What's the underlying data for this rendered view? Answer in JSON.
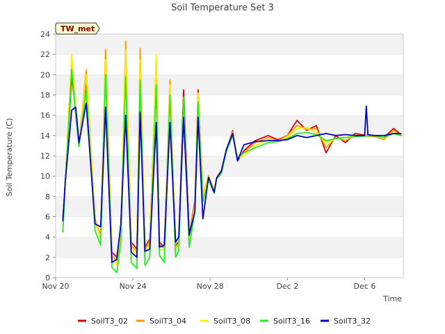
{
  "chart_data": {
    "type": "line",
    "title": "Soil Temperature Set 3",
    "xlabel": "Time",
    "ylabel": "Soil Temperature (C)",
    "badge": "TW_met",
    "ylim": [
      0,
      24
    ],
    "xlim": [
      "2022-11-20",
      "2022-12-08"
    ],
    "yticks": [
      0,
      2,
      4,
      6,
      8,
      10,
      12,
      14,
      16,
      18,
      20,
      22,
      24
    ],
    "xticks": [
      {
        "date": "2022-11-20",
        "label": "Nov 20"
      },
      {
        "date": "2022-11-24",
        "label": "Nov 24"
      },
      {
        "date": "2022-11-28",
        "label": "Nov 28"
      },
      {
        "date": "2022-12-02",
        "label": "Dec 2"
      },
      {
        "date": "2022-12-06",
        "label": "Dec 6"
      }
    ],
    "grid": "horizontal alternating bands",
    "legend_position": "bottom",
    "series": [
      {
        "name": "SoilT3_02",
        "color": "#dd0000",
        "x": [
          "2022-11-20 09:00",
          "2022-11-20 12:00",
          "2022-11-20 20:00",
          "2022-11-21 01:00",
          "2022-11-21 05:00",
          "2022-11-21 14:00",
          "2022-11-22 01:00",
          "2022-11-22 08:00",
          "2022-11-22 14:00",
          "2022-11-22 22:00",
          "2022-11-23 04:00",
          "2022-11-23 09:00",
          "2022-11-23 15:00",
          "2022-11-23 22:00",
          "2022-11-24 05:00",
          "2022-11-24 09:00",
          "2022-11-24 15:00",
          "2022-11-24 21:00",
          "2022-11-25 05:00",
          "2022-11-25 09:00",
          "2022-11-25 15:00",
          "2022-11-25 22:00",
          "2022-11-26 05:00",
          "2022-11-26 09:00",
          "2022-11-26 15:00",
          "2022-11-26 22:00",
          "2022-11-27 05:00",
          "2022-11-27 09:00",
          "2022-11-27 15:00",
          "2022-11-27 22:00",
          "2022-11-28 05:00",
          "2022-11-28 08:00",
          "2022-11-28 14:00",
          "2022-11-28 20:00",
          "2022-11-29 04:00",
          "2022-11-29 10:00",
          "2022-11-29 18:00",
          "2022-11-30 08:00",
          "2022-12-01 00:00",
          "2022-12-01 12:00",
          "2022-12-02 00:00",
          "2022-12-02 12:00",
          "2022-12-03 00:00",
          "2022-12-03 12:00",
          "2022-12-04 00:00",
          "2022-12-04 12:00",
          "2022-12-05 00:00",
          "2022-12-05 12:00",
          "2022-12-06 12:00",
          "2022-12-07 00:00",
          "2022-12-07 12:00",
          "2022-12-07 21:00"
        ],
        "y": [
          5.8,
          9.5,
          19.8,
          16.5,
          13.0,
          19.5,
          5.5,
          4.2,
          20.5,
          2.5,
          2.0,
          5.0,
          20.0,
          3.5,
          2.8,
          19.5,
          3.0,
          3.8,
          21.0,
          3.5,
          3.0,
          18.5,
          3.2,
          3.5,
          18.5,
          4.2,
          7.5,
          18.5,
          8.0,
          10.0,
          8.5,
          9.8,
          10.5,
          12.5,
          14.5,
          11.5,
          12.5,
          13.5,
          14.0,
          13.6,
          14.0,
          15.5,
          14.5,
          15.0,
          12.3,
          14.0,
          13.3,
          14.2,
          13.9,
          13.8,
          14.7,
          14.1
        ]
      },
      {
        "name": "SoilT3_04",
        "color": "#ff9900",
        "x": [
          "2022-11-20 09:00",
          "2022-11-20 12:00",
          "2022-11-20 20:00",
          "2022-11-21 01:00",
          "2022-11-21 05:00",
          "2022-11-21 14:00",
          "2022-11-22 01:00",
          "2022-11-22 08:00",
          "2022-11-22 14:00",
          "2022-11-22 22:00",
          "2022-11-23 04:00",
          "2022-11-23 09:00",
          "2022-11-23 15:00",
          "2022-11-23 22:00",
          "2022-11-24 05:00",
          "2022-11-24 09:00",
          "2022-11-24 15:00",
          "2022-11-24 21:00",
          "2022-11-25 05:00",
          "2022-11-25 09:00",
          "2022-11-25 15:00",
          "2022-11-25 22:00",
          "2022-11-26 05:00",
          "2022-11-26 09:00",
          "2022-11-26 15:00",
          "2022-11-26 22:00",
          "2022-11-27 05:00",
          "2022-11-27 09:00",
          "2022-11-27 15:00",
          "2022-11-27 22:00",
          "2022-11-28 05:00",
          "2022-11-28 08:00",
          "2022-11-28 14:00",
          "2022-11-28 20:00",
          "2022-11-29 04:00",
          "2022-11-29 10:00",
          "2022-11-29 18:00",
          "2022-11-30 08:00",
          "2022-12-01 00:00",
          "2022-12-01 12:00",
          "2022-12-02 00:00",
          "2022-12-02 12:00",
          "2022-12-03 00:00",
          "2022-12-03 12:00",
          "2022-12-04 00:00",
          "2022-12-04 12:00",
          "2022-12-05 00:00",
          "2022-12-05 12:00",
          "2022-12-06 12:00",
          "2022-12-07 00:00",
          "2022-12-07 12:00",
          "2022-12-07 21:00"
        ],
        "y": [
          5.6,
          9.6,
          21.5,
          16.8,
          13.2,
          20.5,
          5.8,
          4.0,
          22.5,
          2.2,
          1.6,
          4.6,
          23.3,
          3.2,
          2.5,
          22.6,
          2.8,
          3.6,
          21.5,
          3.2,
          2.9,
          19.5,
          3.0,
          3.4,
          17.5,
          4.0,
          7.3,
          18.0,
          8.2,
          10.1,
          8.6,
          9.9,
          10.6,
          12.6,
          14.4,
          11.7,
          12.3,
          13.3,
          13.8,
          13.5,
          14.0,
          15.0,
          14.6,
          14.7,
          12.8,
          13.8,
          13.5,
          14.0,
          13.9,
          13.6,
          14.5,
          14.0
        ]
      },
      {
        "name": "SoilT3_08",
        "color": "#ffee00",
        "x": [
          "2022-11-20 09:00",
          "2022-11-20 12:00",
          "2022-11-20 20:00",
          "2022-11-21 01:00",
          "2022-11-21 05:00",
          "2022-11-21 14:00",
          "2022-11-22 01:00",
          "2022-11-22 08:00",
          "2022-11-22 14:00",
          "2022-11-22 22:00",
          "2022-11-23 04:00",
          "2022-11-23 09:00",
          "2022-11-23 15:00",
          "2022-11-23 22:00",
          "2022-11-24 05:00",
          "2022-11-24 09:00",
          "2022-11-24 15:00",
          "2022-11-24 21:00",
          "2022-11-25 05:00",
          "2022-11-25 09:00",
          "2022-11-25 15:00",
          "2022-11-25 22:00",
          "2022-11-26 05:00",
          "2022-11-26 09:00",
          "2022-11-26 15:00",
          "2022-11-26 22:00",
          "2022-11-27 05:00",
          "2022-11-27 09:00",
          "2022-11-27 15:00",
          "2022-11-27 22:00",
          "2022-11-28 05:00",
          "2022-11-28 08:00",
          "2022-11-28 14:00",
          "2022-11-28 20:00",
          "2022-11-29 04:00",
          "2022-11-29 10:00",
          "2022-11-29 18:00",
          "2022-11-30 08:00",
          "2022-12-01 00:00",
          "2022-12-01 12:00",
          "2022-12-02 00:00",
          "2022-12-02 12:00",
          "2022-12-03 00:00",
          "2022-12-03 12:00",
          "2022-12-04 00:00",
          "2022-12-04 12:00",
          "2022-12-05 00:00",
          "2022-12-05 12:00",
          "2022-12-06 12:00",
          "2022-12-07 00:00",
          "2022-12-07 12:00",
          "2022-12-07 21:00"
        ],
        "y": [
          5.5,
          9.6,
          22.0,
          16.6,
          13.1,
          20.0,
          5.6,
          3.8,
          21.5,
          2.0,
          1.2,
          4.2,
          22.5,
          3.0,
          2.0,
          21.5,
          2.5,
          3.3,
          22.0,
          2.8,
          2.7,
          19.0,
          2.8,
          3.2,
          17.0,
          3.8,
          7.0,
          18.2,
          8.0,
          10.0,
          8.5,
          9.8,
          10.4,
          12.4,
          14.2,
          11.8,
          12.0,
          13.0,
          13.6,
          13.4,
          13.8,
          14.7,
          14.8,
          14.3,
          13.3,
          13.7,
          13.8,
          14.0,
          14.0,
          13.7,
          14.4,
          14.0
        ]
      },
      {
        "name": "SoilT3_16",
        "color": "#22ee22",
        "x": [
          "2022-11-20 09:00",
          "2022-11-20 12:00",
          "2022-11-20 20:00",
          "2022-11-21 01:00",
          "2022-11-21 05:00",
          "2022-11-21 14:00",
          "2022-11-22 01:00",
          "2022-11-22 08:00",
          "2022-11-22 14:00",
          "2022-11-22 22:00",
          "2022-11-23 04:00",
          "2022-11-23 09:00",
          "2022-11-23 15:00",
          "2022-11-23 22:00",
          "2022-11-24 05:00",
          "2022-11-24 09:00",
          "2022-11-24 15:00",
          "2022-11-24 21:00",
          "2022-11-25 05:00",
          "2022-11-25 09:00",
          "2022-11-25 15:00",
          "2022-11-25 22:00",
          "2022-11-26 05:00",
          "2022-11-26 09:00",
          "2022-11-26 15:00",
          "2022-11-26 22:00",
          "2022-11-27 05:00",
          "2022-11-27 09:00",
          "2022-11-27 15:00",
          "2022-11-27 22:00",
          "2022-11-28 05:00",
          "2022-11-28 08:00",
          "2022-11-28 14:00",
          "2022-11-28 20:00",
          "2022-11-29 04:00",
          "2022-11-29 10:00",
          "2022-11-29 18:00",
          "2022-11-30 08:00",
          "2022-12-01 00:00",
          "2022-12-01 12:00",
          "2022-12-02 00:00",
          "2022-12-02 12:00",
          "2022-12-03 00:00",
          "2022-12-03 12:00",
          "2022-12-04 00:00",
          "2022-12-04 12:00",
          "2022-12-05 00:00",
          "2022-12-05 12:00",
          "2022-12-06 12:00",
          "2022-12-07 00:00",
          "2022-12-07 12:00",
          "2022-12-07 21:00"
        ],
        "y": [
          4.5,
          9.3,
          20.5,
          16.0,
          12.9,
          18.5,
          4.6,
          3.2,
          20.0,
          1.0,
          0.5,
          3.5,
          19.8,
          1.5,
          0.9,
          19.5,
          1.2,
          2.0,
          19.0,
          2.2,
          1.5,
          18.0,
          2.0,
          2.6,
          17.8,
          3.0,
          6.5,
          17.3,
          7.5,
          9.6,
          8.3,
          9.7,
          10.3,
          12.4,
          14.0,
          11.8,
          12.3,
          12.8,
          13.3,
          13.4,
          13.7,
          14.2,
          14.3,
          14.1,
          13.5,
          13.7,
          13.8,
          13.9,
          14.0,
          13.8,
          14.2,
          14.0
        ]
      },
      {
        "name": "SoilT3_32",
        "color": "#0000cc",
        "x": [
          "2022-11-20 09:00",
          "2022-11-20 12:00",
          "2022-11-20 20:00",
          "2022-11-21 01:00",
          "2022-11-21 05:00",
          "2022-11-21 14:00",
          "2022-11-22 01:00",
          "2022-11-22 08:00",
          "2022-11-22 14:00",
          "2022-11-22 22:00",
          "2022-11-23 04:00",
          "2022-11-23 09:00",
          "2022-11-23 15:00",
          "2022-11-23 22:00",
          "2022-11-24 05:00",
          "2022-11-24 09:00",
          "2022-11-24 15:00",
          "2022-11-24 21:00",
          "2022-11-25 05:00",
          "2022-11-25 09:00",
          "2022-11-25 15:00",
          "2022-11-25 22:00",
          "2022-11-26 05:00",
          "2022-11-26 09:00",
          "2022-11-26 15:00",
          "2022-11-26 22:00",
          "2022-11-27 05:00",
          "2022-11-27 09:00",
          "2022-11-27 15:00",
          "2022-11-27 22:00",
          "2022-11-28 05:00",
          "2022-11-28 08:00",
          "2022-11-28 14:00",
          "2022-11-28 20:00",
          "2022-11-29 04:00",
          "2022-11-29 10:00",
          "2022-11-29 18:00",
          "2022-11-30 08:00",
          "2022-12-01 00:00",
          "2022-12-01 12:00",
          "2022-12-02 00:00",
          "2022-12-02 12:00",
          "2022-12-03 00:00",
          "2022-12-03 12:00",
          "2022-12-04 00:00",
          "2022-12-04 12:00",
          "2022-12-05 00:00",
          "2022-12-05 12:00",
          "2022-12-06 00:00",
          "2022-12-06 02:00",
          "2022-12-06 04:00",
          "2022-12-06 12:00",
          "2022-12-07 00:00",
          "2022-12-07 12:00",
          "2022-12-07 21:00"
        ],
        "y": [
          5.6,
          9.5,
          16.5,
          16.8,
          13.3,
          17.2,
          5.3,
          5.0,
          16.8,
          1.5,
          1.8,
          5.3,
          16.0,
          2.5,
          2.0,
          16.3,
          2.6,
          2.8,
          15.3,
          3.0,
          3.2,
          15.3,
          3.5,
          4.0,
          15.8,
          4.2,
          6.5,
          15.8,
          5.8,
          9.9,
          8.4,
          9.8,
          10.5,
          12.6,
          14.2,
          11.5,
          13.1,
          13.4,
          13.5,
          13.5,
          13.6,
          14.0,
          13.8,
          14.0,
          14.2,
          14.0,
          14.1,
          14.0,
          14.0,
          16.9,
          14.1,
          14.0,
          14.0,
          14.2,
          14.2
        ]
      }
    ]
  }
}
